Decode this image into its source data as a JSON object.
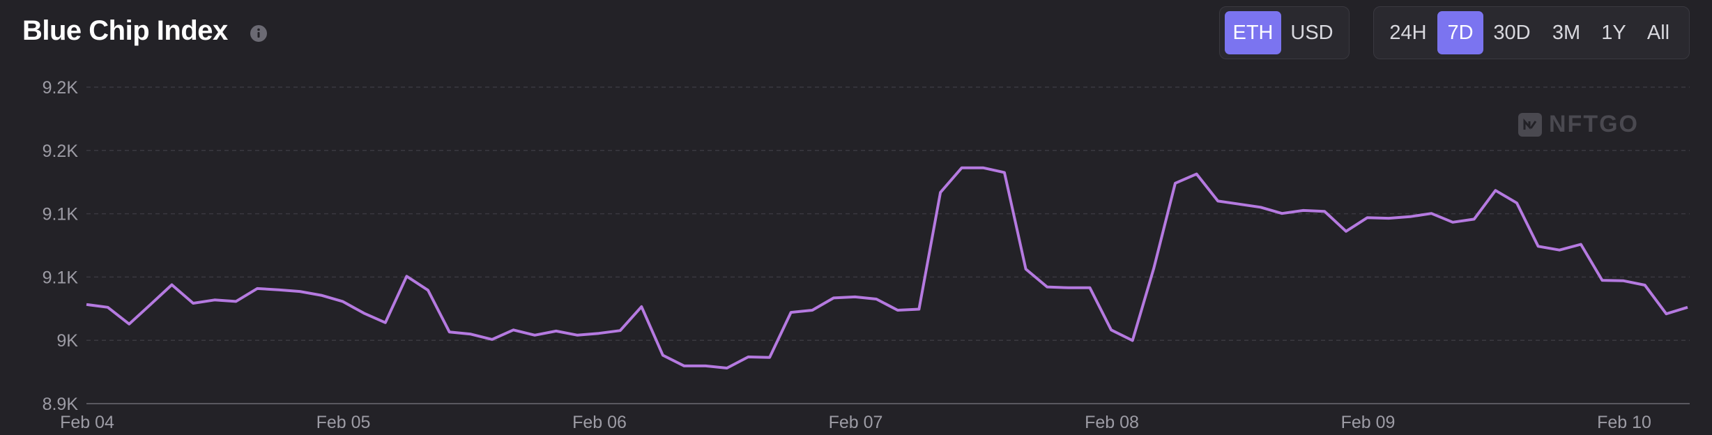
{
  "header": {
    "title": "Blue Chip Index",
    "info_icon": "info-icon"
  },
  "currency_toggle": {
    "options": [
      "ETH",
      "USD"
    ],
    "selected": "ETH"
  },
  "range_toggle": {
    "options": [
      "24H",
      "7D",
      "30D",
      "3M",
      "1Y",
      "All"
    ],
    "selected": "7D"
  },
  "watermark": {
    "text": "NFTGO"
  },
  "colors": {
    "background": "#232227",
    "line": "#b57ae0",
    "accent": "#7b74f0",
    "grid": "#3a3940"
  },
  "chart_data": {
    "type": "line",
    "title": "Blue Chip Index",
    "xlabel": "",
    "ylabel": "",
    "ytick_labels": [
      "8.9K",
      "9K",
      "9.1K",
      "9.1K",
      "9.2K",
      "9.2K"
    ],
    "xtick_labels": [
      "Feb 04",
      "Feb 05",
      "Feb 06",
      "Feb 07",
      "Feb 08",
      "Feb 09",
      "Feb 10"
    ],
    "ylim": [
      8950,
      9200
    ],
    "grid": true,
    "series": [
      {
        "values": [
          9028.3,
          9026.1,
          9012.9,
          9028.3,
          9043.9,
          9029.3,
          9031.9,
          9030.7,
          9040.9,
          9039.9,
          9038.6,
          9035.6,
          9030.7,
          9021.4,
          9014.0,
          9050.6,
          9039.6,
          9006.6,
          9004.9,
          9000.7,
          9008.2,
          9004.1,
          9007.3,
          9004.1,
          9005.5,
          9007.7,
          9026.6,
          8988.2,
          8979.8,
          8979.8,
          8978.1,
          8986.9,
          8986.5,
          9022.1,
          9023.8,
          9033.5,
          9034.3,
          9032.6,
          9023.8,
          9024.6,
          9116.8,
          9136.3,
          9136.3,
          9132.6,
          9056.3,
          9042.2,
          9041.5,
          9041.5,
          9008.2,
          8999.9,
          9057.1,
          9124.1,
          9131.4,
          9110.0,
          9107.6,
          9105.1,
          9100.2,
          9102.6,
          9101.8,
          9086.1,
          9096.9,
          9096.4,
          9097.7,
          9100.2,
          9093.3,
          9095.7,
          9118.4,
          9108.5,
          9074.3,
          9071.3,
          9075.8,
          9047.4,
          9047.0,
          9043.6,
          9020.9,
          9026.1
        ]
      }
    ]
  }
}
